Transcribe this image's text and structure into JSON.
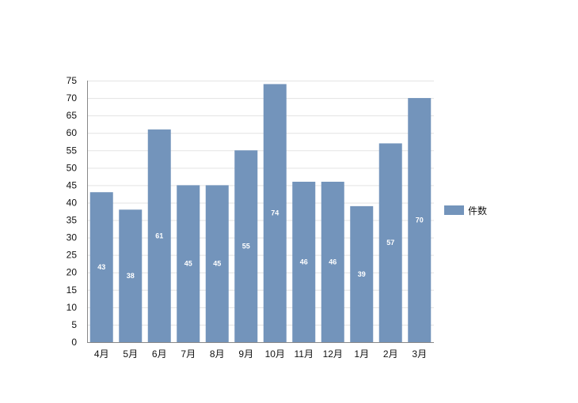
{
  "chart_data": {
    "type": "bar",
    "categories": [
      "4月",
      "5月",
      "6月",
      "7月",
      "8月",
      "9月",
      "10月",
      "11月",
      "12月",
      "1月",
      "2月",
      "3月"
    ],
    "series": [
      {
        "name": "件数",
        "values": [
          43,
          38,
          61,
          45,
          45,
          55,
          74,
          46,
          46,
          39,
          57,
          70
        ],
        "color": "#7394bb"
      }
    ],
    "yticks": [
      0,
      5,
      10,
      15,
      20,
      25,
      30,
      35,
      40,
      45,
      50,
      55,
      60,
      65,
      70,
      75
    ],
    "ylim": [
      0,
      75
    ],
    "data_labels": true,
    "grid": true,
    "legend": "right"
  }
}
